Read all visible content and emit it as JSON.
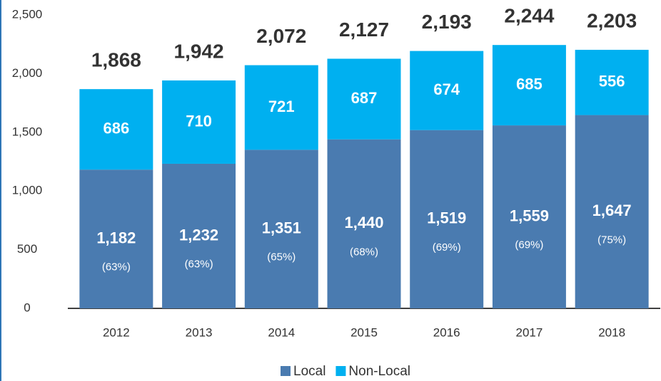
{
  "chart_data": {
    "type": "stacked_bar",
    "categories": [
      "2012",
      "2013",
      "2014",
      "2015",
      "2016",
      "2017",
      "2018"
    ],
    "series": [
      {
        "name": "Local",
        "color": "#4a7bb0",
        "values": [
          1182,
          1232,
          1351,
          1440,
          1519,
          1559,
          1647
        ],
        "value_labels": [
          "1,182",
          "1,232",
          "1,351",
          "1,440",
          "1,519",
          "1,559",
          "1,647"
        ],
        "shares": [
          63,
          63,
          65,
          68,
          69,
          69,
          75
        ],
        "share_labels": [
          "(63%)",
          "(63%)",
          "(65%)",
          "(68%)",
          "(69%)",
          "(69%)",
          "(75%)"
        ]
      },
      {
        "name": "Non-Local",
        "color": "#00b0f0",
        "values": [
          686,
          710,
          721,
          687,
          674,
          685,
          556
        ]
      }
    ],
    "totals": [
      1868,
      1942,
      2072,
      2127,
      2193,
      2244,
      2203
    ],
    "total_labels": [
      "1,868",
      "1,942",
      "2,072",
      "2,127",
      "2,193",
      "2,244",
      "2,203"
    ],
    "ylim": [
      0,
      2500
    ],
    "yticks": [
      0,
      500,
      {
        "value": 1000,
        "label": "1,000"
      },
      {
        "value": 1500,
        "label": "1,500"
      },
      {
        "value": 2000,
        "label": "2,000"
      },
      {
        "value": 2500,
        "label": "2,500"
      }
    ],
    "grid": false,
    "legend": "bottom"
  }
}
